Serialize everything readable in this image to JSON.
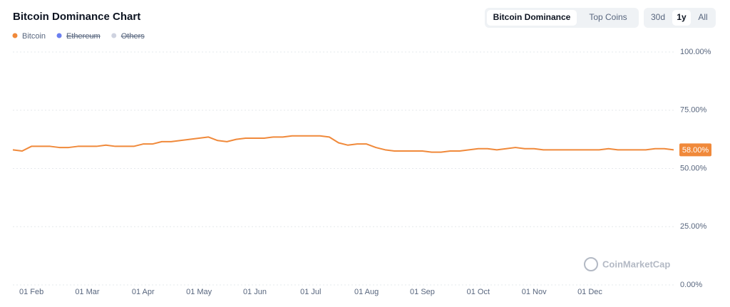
{
  "chart_data": {
    "type": "line",
    "title": "Bitcoin Dominance Chart",
    "tabs": [
      "Bitcoin Dominance",
      "Top Coins"
    ],
    "ranges": [
      "30d",
      "1y",
      "All"
    ],
    "watermark": "CoinMarketCap",
    "categories": [
      null,
      null,
      "01 Feb",
      null,
      null,
      null,
      null,
      null,
      "01 Mar",
      null,
      null,
      null,
      null,
      null,
      "01 Apr",
      null,
      null,
      null,
      null,
      null,
      "01 May",
      null,
      null,
      null,
      null,
      null,
      "01 Jun",
      null,
      null,
      null,
      null,
      null,
      "01 Jul",
      null,
      null,
      null,
      null,
      null,
      "01 Aug",
      null,
      null,
      null,
      null,
      null,
      "01 Sep",
      null,
      null,
      null,
      null,
      null,
      "01 Oct",
      null,
      null,
      null,
      null,
      null,
      "01 Nov",
      null,
      null,
      null,
      null,
      null,
      "01 Dec",
      null,
      null,
      null,
      null,
      null,
      null,
      null,
      null,
      null
    ],
    "series": [
      {
        "name": "Bitcoin",
        "color": "#f0893a",
        "values": [
          58,
          57.5,
          59.5,
          59.5,
          59.5,
          59,
          59,
          59.5,
          59.5,
          59.5,
          60,
          59.5,
          59.5,
          59.5,
          60.5,
          60.5,
          61.5,
          61.5,
          62,
          62.5,
          63,
          63.5,
          62,
          61.5,
          62.5,
          63,
          63,
          63,
          63.5,
          63.5,
          64,
          64,
          64,
          64,
          63.5,
          61,
          60,
          60.5,
          60.5,
          59,
          58,
          57.5,
          57.5,
          57.5,
          57.5,
          57,
          57,
          57.5,
          57.5,
          58,
          58.5,
          58.5,
          58,
          58.5,
          59,
          58.5,
          58.5,
          58,
          58,
          58,
          58,
          58,
          58,
          58,
          58.5,
          58,
          58,
          58,
          58,
          58.5,
          58.5,
          58
        ]
      }
    ],
    "hidden_series": [
      {
        "name": "Ethereum",
        "color": "#6b7ff0"
      },
      {
        "name": "Others",
        "color": "#cfd3e0"
      }
    ],
    "current_value": {
      "value": 58,
      "label": "58.00%"
    },
    "ylim": [
      0,
      100
    ],
    "yticks": [
      {
        "value": 0,
        "label": "0.00%"
      },
      {
        "value": 25,
        "label": "25.00%"
      },
      {
        "value": 50,
        "label": "50.00%"
      },
      {
        "value": 75,
        "label": "75.00%"
      },
      {
        "value": 100,
        "label": "100.00%"
      }
    ],
    "grid": true
  }
}
